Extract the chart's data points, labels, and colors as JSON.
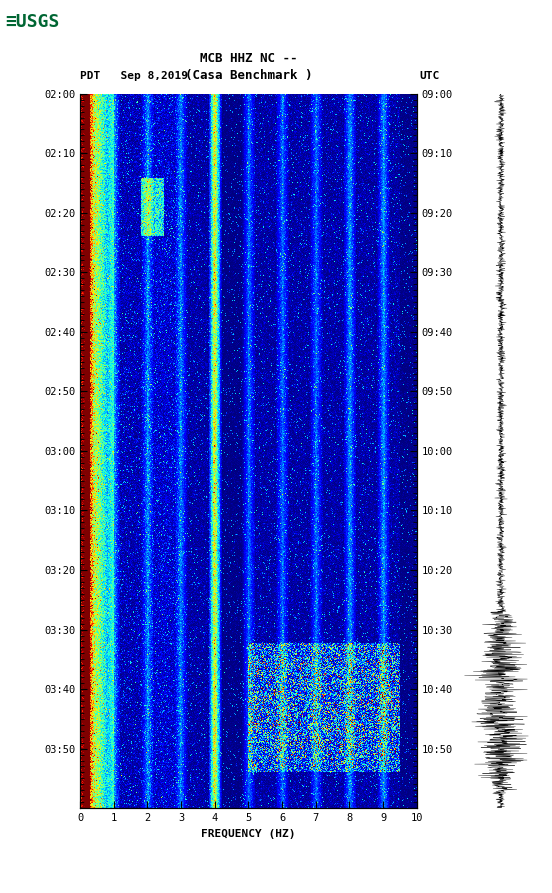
{
  "title_line1": "MCB HHZ NC --",
  "title_line2": "(Casa Benchmark )",
  "date_label": "PDT   Sep 8,2019",
  "utc_label": "UTC",
  "xlabel": "FREQUENCY (HZ)",
  "freq_min": 0,
  "freq_max": 10,
  "freq_ticks": [
    0,
    1,
    2,
    3,
    4,
    5,
    6,
    7,
    8,
    9,
    10
  ],
  "pdt_time_labels": [
    "02:00",
    "02:10",
    "02:20",
    "02:30",
    "02:40",
    "02:50",
    "03:00",
    "03:10",
    "03:20",
    "03:30",
    "03:40",
    "03:50"
  ],
  "utc_time_labels": [
    "09:00",
    "09:10",
    "09:20",
    "09:30",
    "09:40",
    "09:50",
    "10:00",
    "10:10",
    "10:20",
    "10:30",
    "10:40",
    "10:50"
  ],
  "n_time": 720,
  "n_freq": 500,
  "background_color": "#ffffff",
  "spectrogram_cmap": "jet",
  "fig_width": 5.52,
  "fig_height": 8.93,
  "dpi": 100,
  "usgs_color": "#006633"
}
